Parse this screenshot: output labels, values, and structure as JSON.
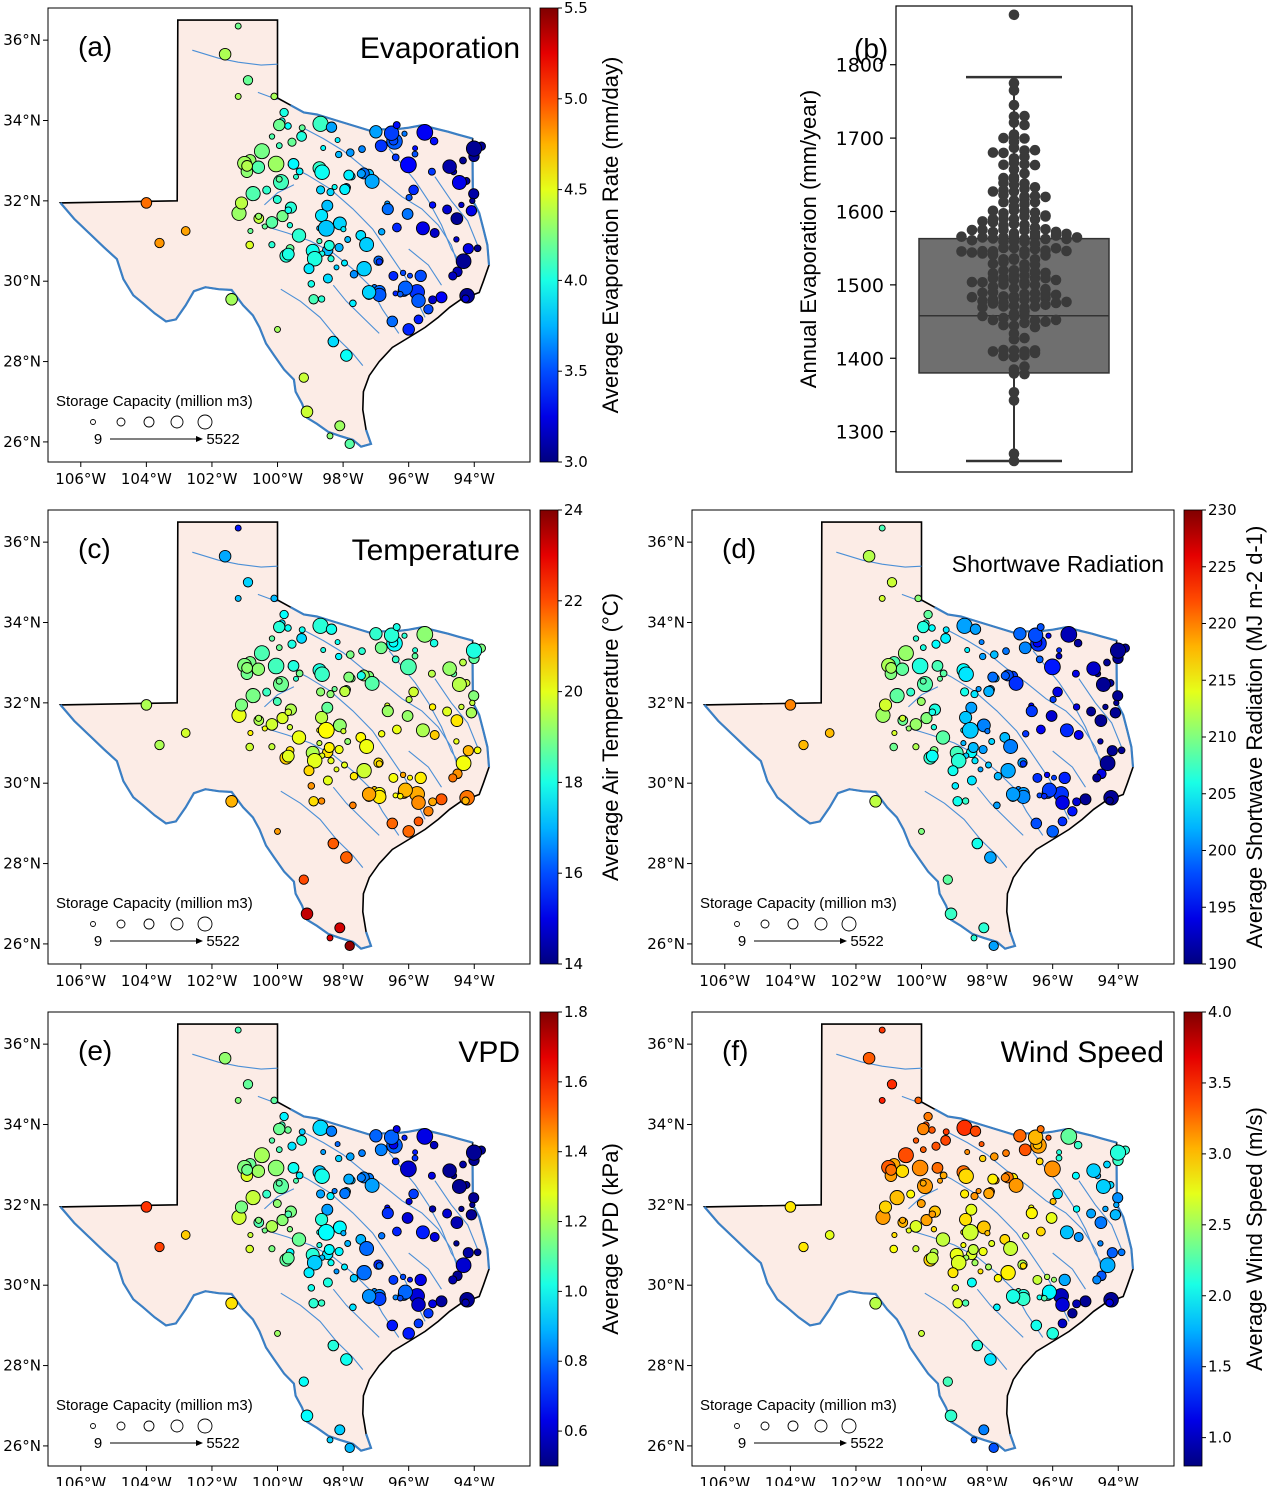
{
  "chart_data": [
    {
      "type": "map-scatter",
      "panel_label": "(a)",
      "title": "Evaporation",
      "colorbar_label": "Average Evaporation Rate (mm/day)",
      "colorbar_range": [
        3.0,
        5.5
      ],
      "colorbar_ticks": [
        "3.0",
        "3.5",
        "4.0",
        "4.5",
        "5.0",
        "5.5"
      ],
      "x_ticks": [
        "106°W",
        "104°W",
        "102°W",
        "100°W",
        "98°W",
        "96°W",
        "94°W"
      ],
      "y_ticks": [
        "26°N",
        "28°N",
        "30°N",
        "32°N",
        "34°N",
        "36°N"
      ],
      "legend_title": "Storage Capacity (million m3)",
      "legend_min": "9",
      "legend_max": "5522",
      "color_trend": "east-low-west-high"
    },
    {
      "type": "box-swarm",
      "panel_label": "(b)",
      "ylabel": "Annual Evaporation (mm/year)",
      "y_ticks": [
        1300,
        1400,
        1500,
        1600,
        1700,
        1800
      ],
      "ylim": [
        1245,
        1880
      ],
      "box": {
        "q1": 1380,
        "median": 1458,
        "q3": 1563,
        "whisker_low": 1260,
        "whisker_high": 1783
      },
      "outliers": [
        1868
      ],
      "box_color": "#6f6f6f"
    },
    {
      "type": "map-scatter",
      "panel_label": "(c)",
      "title": "Temperature",
      "colorbar_label": "Average Air Temperature (°C)",
      "colorbar_range": [
        14,
        24
      ],
      "colorbar_ticks": [
        "14",
        "16",
        "18",
        "20",
        "22",
        "24"
      ],
      "x_ticks": [
        "106°W",
        "104°W",
        "102°W",
        "100°W",
        "98°W",
        "96°W",
        "94°W"
      ],
      "y_ticks": [
        "26°N",
        "28°N",
        "30°N",
        "32°N",
        "34°N",
        "36°N"
      ],
      "legend_title": "Storage Capacity (million m3)",
      "legend_min": "9",
      "legend_max": "5522",
      "color_trend": "south-high-north-low"
    },
    {
      "type": "map-scatter",
      "panel_label": "(d)",
      "title": "Shortwave Radiation",
      "colorbar_label": "Average Shortwave Radiation (MJ m-2 d-1)",
      "colorbar_range": [
        190,
        230
      ],
      "colorbar_ticks": [
        "190",
        "195",
        "200",
        "205",
        "210",
        "215",
        "220",
        "225",
        "230"
      ],
      "x_ticks": [
        "106°W",
        "104°W",
        "102°W",
        "100°W",
        "98°W",
        "96°W",
        "94°W"
      ],
      "y_ticks": [
        "26°N",
        "28°N",
        "30°N",
        "32°N",
        "34°N",
        "36°N"
      ],
      "legend_title": "Storage Capacity (million m3)",
      "legend_min": "9",
      "legend_max": "5522",
      "color_trend": "west-high-east-low"
    },
    {
      "type": "map-scatter",
      "panel_label": "(e)",
      "title": "VPD",
      "colorbar_label": "Average VPD (kPa)",
      "colorbar_range": [
        0.5,
        1.8
      ],
      "colorbar_ticks": [
        "0.6",
        "0.8",
        "1.0",
        "1.2",
        "1.4",
        "1.6",
        "1.8"
      ],
      "x_ticks": [
        "106°W",
        "104°W",
        "102°W",
        "100°W",
        "98°W",
        "96°W",
        "94°W"
      ],
      "y_ticks": [
        "26°N",
        "28°N",
        "30°N",
        "32°N",
        "34°N",
        "36°N"
      ],
      "legend_title": "Storage Capacity (million m3)",
      "legend_min": "9",
      "legend_max": "5522",
      "color_trend": "west-high-east-low"
    },
    {
      "type": "map-scatter",
      "panel_label": "(f)",
      "title": "Wind Speed",
      "colorbar_label": "Average Wind Speed (m/s)",
      "colorbar_range": [
        0.8,
        4.0
      ],
      "colorbar_ticks": [
        "1.0",
        "1.5",
        "2.0",
        "2.5",
        "3.0",
        "3.5",
        "4.0"
      ],
      "x_ticks": [
        "106°W",
        "104°W",
        "102°W",
        "100°W",
        "98°W",
        "96°W",
        "94°W"
      ],
      "y_ticks": [
        "26°N",
        "28°N",
        "30°N",
        "32°N",
        "34°N",
        "36°N"
      ],
      "legend_title": "Storage Capacity (million m3)",
      "legend_min": "9",
      "legend_max": "5522",
      "color_trend": "north-high-east-low"
    }
  ]
}
